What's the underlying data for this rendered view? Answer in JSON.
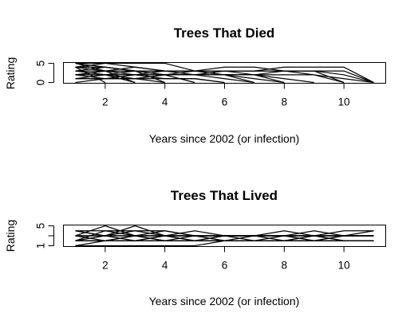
{
  "chart_data": [
    {
      "type": "line",
      "title": "Trees That Died",
      "xlabel": "Years since 2002 (or infection)",
      "ylabel": "Rating",
      "xlim": [
        1,
        11
      ],
      "ylim": [
        0,
        5
      ],
      "xticks": [
        2,
        4,
        6,
        8,
        10
      ],
      "yticks": [
        0,
        5
      ],
      "grid": false,
      "legend": "none",
      "line_color": "#000000",
      "series": [
        {
          "x": [
            1,
            2,
            3,
            4,
            5
          ],
          "y": [
            5,
            4,
            3,
            2,
            0
          ]
        },
        {
          "x": [
            1,
            2,
            3,
            4,
            5,
            6,
            7
          ],
          "y": [
            4,
            5,
            4,
            3,
            3,
            2,
            0
          ]
        },
        {
          "x": [
            1,
            2,
            3,
            4,
            5,
            6,
            7,
            8,
            9,
            10,
            11
          ],
          "y": [
            3,
            3,
            4,
            3,
            3,
            4,
            4,
            3,
            3,
            2,
            0
          ]
        },
        {
          "x": [
            1,
            2,
            3,
            4,
            5,
            6,
            7,
            8,
            9
          ],
          "y": [
            2,
            3,
            2,
            3,
            2,
            2,
            2,
            1,
            0
          ]
        },
        {
          "x": [
            1,
            2,
            3,
            4,
            5,
            6,
            7,
            8,
            9,
            10,
            11
          ],
          "y": [
            4,
            4,
            3,
            3,
            3,
            3,
            3,
            4,
            4,
            4,
            0
          ]
        },
        {
          "x": [
            1,
            2,
            3,
            4,
            5,
            6,
            7,
            8
          ],
          "y": [
            1,
            2,
            1,
            2,
            3,
            2,
            1,
            0
          ]
        },
        {
          "x": [
            1,
            2,
            3,
            4,
            5,
            6
          ],
          "y": [
            3,
            2,
            2,
            1,
            1,
            0
          ]
        },
        {
          "x": [
            1,
            2,
            3,
            4
          ],
          "y": [
            2,
            1,
            1,
            0
          ]
        },
        {
          "x": [
            1,
            2,
            3
          ],
          "y": [
            5,
            3,
            0
          ]
        },
        {
          "x": [
            1,
            2
          ],
          "y": [
            4,
            0
          ]
        },
        {
          "x": [
            1,
            2,
            3,
            4,
            5,
            6,
            7,
            8,
            9,
            10
          ],
          "y": [
            3,
            2,
            3,
            2,
            2,
            3,
            3,
            3,
            2,
            0
          ]
        },
        {
          "x": [
            1,
            2,
            3,
            4,
            5,
            6,
            7,
            8,
            9,
            10,
            11
          ],
          "y": [
            2,
            2,
            2,
            2,
            2,
            3,
            2,
            3,
            3,
            3,
            0
          ]
        },
        {
          "x": [
            1,
            2,
            3,
            4,
            5,
            6,
            7,
            8,
            9,
            10
          ],
          "y": [
            5,
            5,
            5,
            5,
            3,
            3,
            3,
            3,
            3,
            0
          ]
        },
        {
          "x": [
            1,
            2,
            3,
            4,
            5,
            6,
            7
          ],
          "y": [
            1,
            1,
            2,
            2,
            2,
            1,
            0
          ]
        },
        {
          "x": [
            1,
            2,
            3,
            4,
            5
          ],
          "y": [
            2,
            3,
            3,
            2,
            0
          ]
        },
        {
          "x": [
            1,
            2,
            3,
            4,
            5,
            6
          ],
          "y": [
            0,
            1,
            1,
            1,
            1,
            0
          ]
        },
        {
          "x": [
            1,
            2,
            3,
            4,
            5,
            6,
            7,
            8,
            9,
            10,
            11
          ],
          "y": [
            1,
            1,
            1,
            2,
            2,
            2,
            2,
            2,
            2,
            1,
            0
          ]
        },
        {
          "x": [
            1,
            2,
            3,
            4
          ],
          "y": [
            3,
            4,
            3,
            0
          ]
        },
        {
          "x": [
            1,
            2,
            3
          ],
          "y": [
            2,
            2,
            0
          ]
        },
        {
          "x": [
            1,
            2,
            3,
            4,
            5,
            6,
            7,
            8
          ],
          "y": [
            4,
            3,
            3,
            3,
            2,
            2,
            2,
            0
          ]
        }
      ]
    },
    {
      "type": "line",
      "title": "Trees That Lived",
      "xlabel": "Years since 2002 (or infection)",
      "ylabel": "Rating",
      "xlim": [
        1,
        11
      ],
      "ylim": [
        1,
        5
      ],
      "xticks": [
        2,
        4,
        6,
        8,
        10
      ],
      "yticks": [
        1,
        3,
        5
      ],
      "ytick_labels": [
        "1",
        "",
        "5"
      ],
      "grid": false,
      "legend": "none",
      "line_color": "#000000",
      "series": [
        {
          "x": [
            1,
            2,
            3,
            4,
            5,
            6,
            7,
            8,
            9,
            10,
            11
          ],
          "y": [
            3,
            5,
            3,
            4,
            3,
            3,
            3,
            3,
            3,
            3,
            3
          ]
        },
        {
          "x": [
            1,
            2,
            3,
            4,
            5,
            6,
            7,
            8,
            9,
            10,
            11
          ],
          "y": [
            4,
            3,
            5,
            3,
            3,
            2,
            3,
            3,
            3,
            3,
            4
          ]
        },
        {
          "x": [
            1,
            2,
            3,
            4,
            5,
            6,
            7,
            8,
            9,
            10,
            11
          ],
          "y": [
            2,
            3,
            2,
            3,
            2,
            2,
            2,
            3,
            2,
            3,
            3
          ]
        },
        {
          "x": [
            1,
            2,
            3,
            4,
            5,
            6,
            7,
            8,
            9,
            10,
            11
          ],
          "y": [
            3,
            3,
            3,
            3,
            4,
            3,
            3,
            4,
            3,
            4,
            4
          ]
        },
        {
          "x": [
            1,
            2,
            3,
            4,
            5,
            6,
            7,
            8,
            9,
            10,
            11
          ],
          "y": [
            2,
            2,
            3,
            2,
            2,
            3,
            2,
            2,
            3,
            2,
            2
          ]
        },
        {
          "x": [
            1,
            2,
            3,
            4,
            5,
            6,
            7,
            8,
            9,
            10,
            11
          ],
          "y": [
            3,
            2,
            2,
            3,
            3,
            3,
            3,
            3,
            3,
            3,
            3
          ]
        },
        {
          "x": [
            1,
            2,
            3,
            4,
            5,
            6,
            7,
            8,
            9,
            10,
            11
          ],
          "y": [
            4,
            4,
            4,
            4,
            3,
            2,
            2,
            2,
            2,
            2,
            2
          ]
        },
        {
          "x": [
            1,
            2,
            3,
            4,
            5,
            6,
            7,
            8,
            9,
            10,
            11
          ],
          "y": [
            1,
            2,
            2,
            2,
            2,
            3,
            3,
            3,
            2,
            3,
            3
          ]
        },
        {
          "x": [
            1,
            2,
            3,
            4,
            5,
            6,
            7,
            8,
            9,
            10,
            11
          ],
          "y": [
            2,
            4,
            3,
            3,
            3,
            3,
            3,
            3,
            3,
            3,
            3
          ]
        },
        {
          "x": [
            1,
            2,
            3,
            4,
            5,
            6,
            7,
            8,
            9,
            10,
            11
          ],
          "y": [
            3,
            3,
            3,
            2,
            3,
            3,
            3,
            2,
            3,
            2,
            2
          ]
        },
        {
          "x": [
            1,
            2,
            3,
            4,
            5,
            6,
            7,
            8,
            9,
            10,
            11
          ],
          "y": [
            3,
            3,
            4,
            3,
            2,
            2,
            2,
            2,
            2,
            2,
            2
          ]
        },
        {
          "x": [
            1,
            2,
            3,
            4,
            5,
            6,
            7,
            8,
            9,
            10,
            11
          ],
          "y": [
            2,
            2,
            3,
            3,
            3,
            3,
            3,
            3,
            3,
            3,
            3
          ]
        },
        {
          "x": [
            1,
            2,
            3,
            4,
            5,
            6,
            7,
            8,
            9,
            10,
            11
          ],
          "y": [
            4,
            3,
            3,
            3,
            3,
            3,
            3,
            3,
            4,
            3,
            3
          ]
        },
        {
          "x": [
            1,
            2,
            3,
            4,
            5,
            6,
            7,
            8,
            9,
            10,
            11
          ],
          "y": [
            1,
            1,
            1,
            1,
            1,
            2,
            2,
            2,
            2,
            2,
            2
          ]
        },
        {
          "x": [
            1,
            2,
            3,
            4,
            5,
            6,
            7,
            8,
            9,
            10,
            11
          ],
          "y": [
            2,
            2,
            2,
            2,
            2,
            2,
            2,
            2,
            2,
            2,
            2
          ]
        }
      ]
    }
  ]
}
